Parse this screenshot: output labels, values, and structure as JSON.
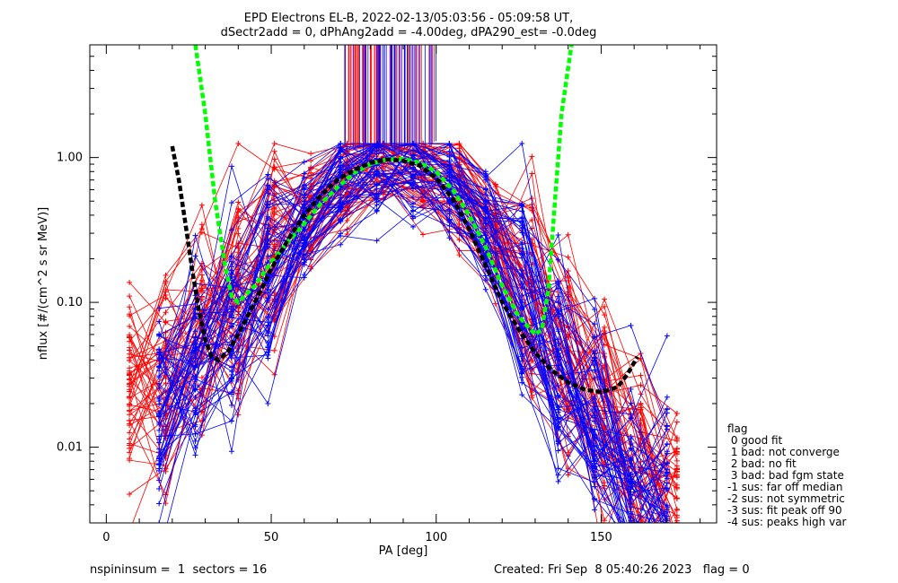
{
  "colors": {
    "background": "#ffffff",
    "axes": "#000000",
    "red": "#ff0000",
    "blue": "#0000ff",
    "green": "#00ff00",
    "black": "#000000"
  },
  "header": {
    "line1": "EPD Electrons EL-B, 2022-02-13/05:03:56 - 05:09:58 UT,",
    "line2": "dSectr2add = 0, dPhAng2add = -4.00deg, dPA290_est=  -0.0deg"
  },
  "footer": {
    "left": "nspininsum =  1  sectors = 16",
    "right": "Created: Fri Sep  8 05:40:26 2023   flag = 0"
  },
  "legend": {
    "title": "flag",
    "items": [
      " 0 good fit",
      " 1 bad: not converge",
      " 2 bad: no fit",
      " 3 bad: bad fgm state",
      "-1 sus: far off median",
      "-2 sus: not symmetric",
      "-3 sus: fit peak off 90",
      "-4 sus: peaks high var"
    ]
  },
  "chart_data": {
    "type": "line",
    "title": "EPD Electrons EL-B, 2022-02-13/05:03:56 - 05:09:58 UT,",
    "xlabel": "PA [deg]",
    "ylabel": "nflux [#/(cm^2 s sr MeV)]",
    "xlim": [
      -5,
      185
    ],
    "ylim": [
      0.003,
      6.0
    ],
    "yscale": "log",
    "xticks": [
      0,
      50,
      100,
      150
    ],
    "xtick_labels": [
      "0",
      "50",
      "100",
      "150"
    ],
    "yticks": [
      0.01,
      0.1,
      1.0
    ],
    "ytick_labels": [
      "0.01",
      "0.10",
      "1.00"
    ],
    "series": [
      {
        "style": "many traces with + markers",
        "color": "red",
        "pa_bins": [
          7,
          18,
          29,
          40,
          51,
          62,
          73,
          84,
          96,
          107,
          118,
          129,
          140,
          151,
          162,
          173
        ],
        "typical_values": [
          0.02,
          0.03,
          0.06,
          0.12,
          0.25,
          0.45,
          0.75,
          0.95,
          0.9,
          0.65,
          0.3,
          0.1,
          0.04,
          0.015,
          0.007,
          0.004
        ]
      },
      {
        "style": "many traces with + markers",
        "color": "blue",
        "pa_bins": [
          16,
          27,
          38,
          49,
          60,
          71,
          82,
          93,
          104,
          115,
          126,
          137,
          148,
          159,
          170
        ],
        "typical_values": [
          0.02,
          0.04,
          0.08,
          0.18,
          0.35,
          0.65,
          0.9,
          0.95,
          0.75,
          0.35,
          0.12,
          0.04,
          0.015,
          0.007,
          0.004
        ]
      },
      {
        "style": "dashed fit",
        "color": "green",
        "x": [
          27,
          30,
          33,
          36,
          38,
          40,
          45,
          50,
          55,
          60,
          65,
          70,
          75,
          80,
          85,
          90,
          95,
          100,
          105,
          110,
          115,
          120,
          125,
          130,
          132,
          134,
          136,
          138,
          141
        ],
        "y": [
          6.0,
          2.0,
          0.5,
          0.18,
          0.11,
          0.1,
          0.13,
          0.19,
          0.26,
          0.35,
          0.48,
          0.62,
          0.78,
          0.9,
          0.97,
          0.98,
          0.92,
          0.8,
          0.6,
          0.4,
          0.24,
          0.13,
          0.08,
          0.06,
          0.065,
          0.12,
          0.5,
          2.0,
          6.0
        ]
      },
      {
        "style": "dashed fit",
        "color": "black",
        "x": [
          20,
          22,
          24,
          26,
          28,
          30,
          32,
          34,
          37,
          40,
          45,
          50,
          55,
          60,
          65,
          70,
          75,
          80,
          85,
          90,
          95,
          100,
          105,
          110,
          115,
          120,
          125,
          130,
          135,
          140,
          145,
          150,
          155,
          158,
          161
        ],
        "y": [
          1.2,
          0.7,
          0.35,
          0.17,
          0.09,
          0.055,
          0.042,
          0.04,
          0.046,
          0.06,
          0.1,
          0.17,
          0.27,
          0.4,
          0.55,
          0.7,
          0.82,
          0.92,
          0.97,
          0.95,
          0.88,
          0.72,
          0.52,
          0.32,
          0.18,
          0.1,
          0.065,
          0.045,
          0.034,
          0.028,
          0.025,
          0.024,
          0.026,
          0.032,
          0.042
        ]
      }
    ]
  }
}
